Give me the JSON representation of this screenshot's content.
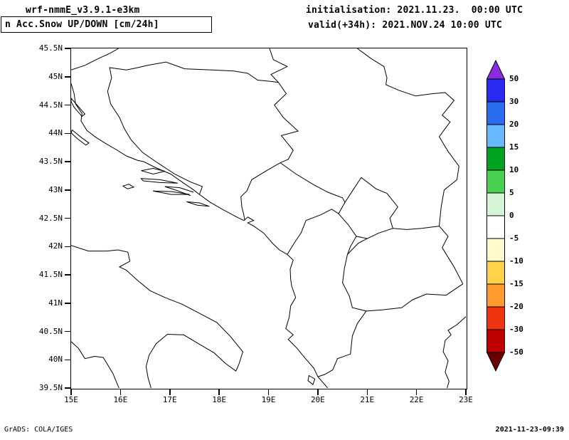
{
  "header": {
    "model": "wrf-nmmE_v3.9.1-e3km",
    "field": "n Acc.Snow UP/DOWN [cm/24h]",
    "init": "initialisation: 2021.11.23.  00:00 UTC",
    "valid": "valid(+34h): 2021.NOV.24 10:00 UTC"
  },
  "map": {
    "lat_ticks": [
      "45.5N",
      "45N",
      "44.5N",
      "44N",
      "43.5N",
      "43N",
      "42.5N",
      "42N",
      "41.5N",
      "41N",
      "40.5N",
      "40N",
      "39.5N"
    ],
    "lon_ticks": [
      "15E",
      "16E",
      "17E",
      "18E",
      "19E",
      "20E",
      "21E",
      "22E",
      "23E"
    ],
    "lon_range_deg_east": [
      15,
      23
    ],
    "lat_range_deg_north": [
      39.5,
      45.5
    ]
  },
  "colorbar": {
    "unit": "cm/24h",
    "levels": [
      "50",
      "30",
      "20",
      "15",
      "10",
      "5",
      "0",
      "-5",
      "-10",
      "-15",
      "-20",
      "-30",
      "-50"
    ],
    "band_colors": [
      "#2a2af0",
      "#2a6cf0",
      "#66b8ff",
      "#00a321",
      "#4ad051",
      "#d6f5d6",
      "#ffffff",
      "#fffacd",
      "#ffd24a",
      "#ff9a2e",
      "#f03410",
      "#c00000"
    ],
    "arrow_top_color": "#8a2be2",
    "arrow_bottom_color": "#6b0000"
  },
  "footer": {
    "left": "GrADS: COLA/IGES",
    "right": "2021-11-23-09:39"
  }
}
